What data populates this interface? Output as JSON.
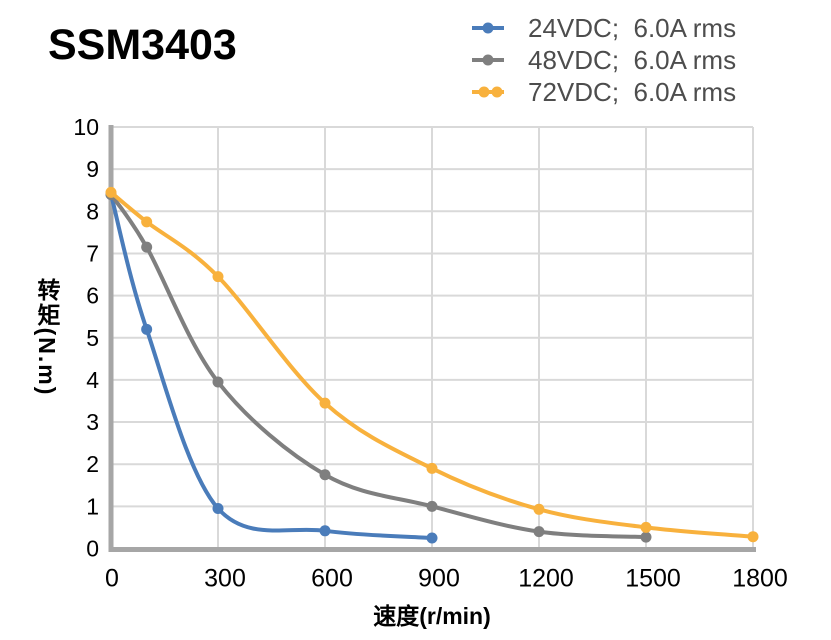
{
  "chart_data": {
    "type": "line",
    "title": "SSM3403",
    "xlabel": "速度(r/min)",
    "ylabel": "转矩(N.m)",
    "xlim": [
      0,
      1800
    ],
    "ylim": [
      0,
      10
    ],
    "x_ticks": [
      0,
      300,
      600,
      900,
      1200,
      1500,
      1800
    ],
    "y_ticks": [
      0,
      1,
      2,
      3,
      4,
      5,
      6,
      7,
      8,
      9,
      10
    ],
    "grid": true,
    "legend_position": "top-right",
    "line_smoothing": true,
    "colors": {
      "axis": "#a6a6a6",
      "gridline": "#d9d9d9",
      "tick_label": "#000000",
      "legend_text": "#4d4d4d"
    },
    "series": [
      {
        "name": "24VDC;  6.0A rms",
        "color": "#4a7cba",
        "x": [
          0,
          100,
          300,
          600,
          900
        ],
        "y": [
          8.4,
          5.2,
          0.95,
          0.42,
          0.25
        ]
      },
      {
        "name": "48VDC;  6.0A rms",
        "color": "#7f7f7f",
        "x": [
          0,
          100,
          300,
          600,
          900,
          1200,
          1500
        ],
        "y": [
          8.4,
          7.15,
          3.95,
          1.75,
          1.0,
          0.4,
          0.27
        ]
      },
      {
        "name": "72VDC;  6.0A rms",
        "color": "#f8b13d",
        "x": [
          0,
          100,
          300,
          600,
          900,
          1200,
          1500,
          1800
        ],
        "y": [
          8.45,
          7.75,
          6.45,
          3.45,
          1.9,
          0.93,
          0.5,
          0.28
        ]
      }
    ]
  }
}
